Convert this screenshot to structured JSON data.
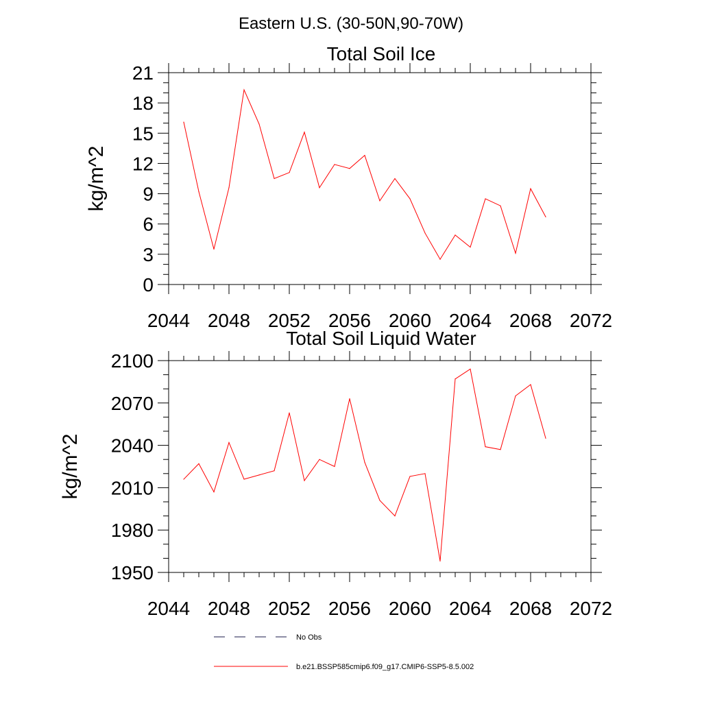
{
  "figure": {
    "suptitle": "Eastern U.S. (30-50N,90-70W)",
    "legend": [
      {
        "label": "No Obs",
        "color": "#1a1a4a",
        "style": "dashed"
      },
      {
        "label": "b.e21.BSSP585cmip6.f09_g17.CMIP6-SSP5-8.5.002",
        "color": "#ff0000",
        "style": "solid"
      }
    ]
  },
  "chart_data": [
    {
      "type": "line",
      "title": "Total Soil Ice",
      "xlabel": "",
      "ylabel": "kg/m^2",
      "xlim": [
        2044,
        2072
      ],
      "ylim": [
        0,
        21
      ],
      "xticks": [
        2044,
        2048,
        2052,
        2056,
        2060,
        2064,
        2068,
        2072
      ],
      "yticks": [
        0,
        3,
        6,
        9,
        12,
        15,
        18,
        21
      ],
      "grid": false,
      "series": [
        {
          "name": "b.e21.BSSP585cmip6.f09_g17.CMIP6-SSP5-8.5.002",
          "color": "#ff0000",
          "x": [
            2045,
            2046,
            2047,
            2048,
            2049,
            2050,
            2051,
            2052,
            2053,
            2054,
            2055,
            2056,
            2057,
            2058,
            2059,
            2060,
            2061,
            2062,
            2063,
            2064,
            2065,
            2066,
            2067,
            2068,
            2069
          ],
          "y": [
            16.1,
            9.2,
            3.5,
            9.6,
            19.3,
            15.9,
            10.5,
            11.1,
            15.1,
            9.6,
            11.9,
            11.5,
            12.8,
            8.3,
            10.5,
            8.5,
            5.1,
            2.5,
            4.9,
            3.7,
            8.5,
            7.8,
            3.1,
            9.5,
            6.7
          ]
        }
      ]
    },
    {
      "type": "line",
      "title": "Total Soil Liquid Water",
      "xlabel": "",
      "ylabel": "kg/m^2",
      "xlim": [
        2044,
        2072
      ],
      "ylim": [
        1950,
        2100
      ],
      "xticks": [
        2044,
        2048,
        2052,
        2056,
        2060,
        2064,
        2068,
        2072
      ],
      "yticks": [
        1950,
        1980,
        2010,
        2040,
        2070,
        2100
      ],
      "grid": false,
      "series": [
        {
          "name": "b.e21.BSSP585cmip6.f09_g17.CMIP6-SSP5-8.5.002",
          "color": "#ff0000",
          "x": [
            2045,
            2046,
            2047,
            2048,
            2049,
            2050,
            2051,
            2052,
            2053,
            2054,
            2055,
            2056,
            2057,
            2058,
            2059,
            2060,
            2061,
            2062,
            2063,
            2064,
            2065,
            2066,
            2067,
            2068,
            2069
          ],
          "y": [
            2016,
            2027,
            2007,
            2042,
            2016,
            2019,
            2022,
            2063,
            2015,
            2030,
            2025,
            2073,
            2028,
            2001,
            1990,
            2018,
            2020,
            1958,
            2087,
            2094,
            2039,
            2037,
            2075,
            2083,
            2045
          ]
        }
      ]
    }
  ]
}
